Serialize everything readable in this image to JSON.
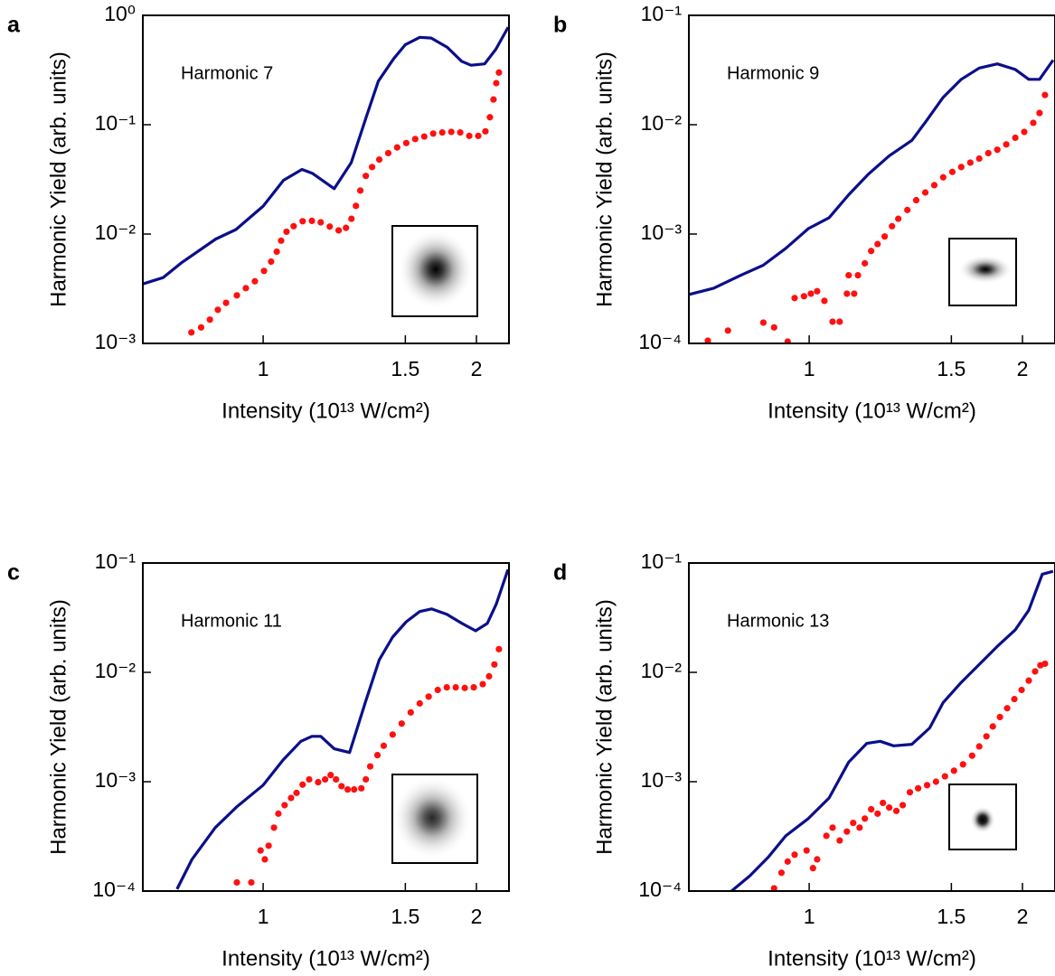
{
  "chart_data": [
    {
      "type": "line",
      "panel_label": "a",
      "annotation": "Harmonic 7",
      "xlabel": "Intensity (10¹³ W/cm²)",
      "ylabel": "Harmonic Yield (arb. units)",
      "xscale": "inverse",
      "yscale": "log",
      "xlim": [
        0.78,
        2.36
      ],
      "ylim": [
        0.001,
        1
      ],
      "xticks": [
        1,
        1.5,
        2
      ],
      "yticks": [
        {
          "value": 0.001,
          "label": "10⁻³"
        },
        {
          "value": 0.01,
          "label": "10⁻²"
        },
        {
          "value": 0.1,
          "label": "10⁻¹"
        },
        {
          "value": 1,
          "label": "10⁰"
        }
      ],
      "series": [
        {
          "mode": "line",
          "color": "#0b0f8a",
          "x": [
            0.78,
            0.81,
            0.84,
            0.9,
            0.94,
            1.0,
            1.05,
            1.1,
            1.13,
            1.2,
            1.26,
            1.32,
            1.37,
            1.44,
            1.5,
            1.58,
            1.65,
            1.76,
            1.87,
            1.95,
            2.08,
            2.2,
            2.35
          ],
          "values": [
            0.0035,
            0.004,
            0.0055,
            0.009,
            0.011,
            0.018,
            0.031,
            0.039,
            0.036,
            0.026,
            0.045,
            0.12,
            0.25,
            0.4,
            0.54,
            0.63,
            0.62,
            0.51,
            0.38,
            0.35,
            0.36,
            0.49,
            0.78
          ]
        },
        {
          "mode": "markers",
          "color": "#ff1010",
          "x": [
            0.856,
            0.873,
            0.889,
            0.904,
            0.92,
            0.942,
            0.961,
            0.981,
            1.002,
            1.019,
            1.033,
            1.044,
            1.058,
            1.077,
            1.102,
            1.129,
            1.156,
            1.185,
            1.215,
            1.241,
            1.261,
            1.278,
            1.295,
            1.317,
            1.343,
            1.374,
            1.415,
            1.458,
            1.505,
            1.554,
            1.607,
            1.663,
            1.724,
            1.789,
            1.859,
            1.935,
            2.017,
            2.088,
            2.135,
            2.174,
            2.205,
            2.236
          ],
          "values": [
            0.00126,
            0.0014,
            0.00165,
            0.00203,
            0.00235,
            0.00275,
            0.0032,
            0.0037,
            0.0046,
            0.0056,
            0.0069,
            0.0087,
            0.0105,
            0.0118,
            0.0131,
            0.0132,
            0.0128,
            0.0117,
            0.0108,
            0.0114,
            0.0138,
            0.0181,
            0.025,
            0.034,
            0.041,
            0.048,
            0.055,
            0.062,
            0.068,
            0.074,
            0.078,
            0.083,
            0.085,
            0.086,
            0.085,
            0.079,
            0.079,
            0.087,
            0.117,
            0.17,
            0.24,
            0.3
          ]
        }
      ]
    },
    {
      "type": "line",
      "panel_label": "b",
      "annotation": "Harmonic 9",
      "xlabel": "Intensity (10¹³ W/cm²)",
      "ylabel": "Harmonic Yield (arb. units)",
      "xscale": "inverse",
      "yscale": "log",
      "xlim": [
        0.78,
        2.36
      ],
      "ylim": [
        0.0001,
        0.1
      ],
      "xticks": [
        1,
        1.5,
        2
      ],
      "yticks": [
        {
          "value": 0.0001,
          "label": "10⁻⁴"
        },
        {
          "value": 0.001,
          "label": "10⁻³"
        },
        {
          "value": 0.01,
          "label": "10⁻²"
        },
        {
          "value": 0.1,
          "label": "10⁻¹"
        }
      ],
      "series": [
        {
          "mode": "line",
          "color": "#0b0f8a",
          "x": [
            0.78,
            0.817,
            0.862,
            0.903,
            0.948,
            0.998,
            1.049,
            1.102,
            1.162,
            1.231,
            1.317,
            1.374,
            1.458,
            1.554,
            1.663,
            1.789,
            1.935,
            2.061,
            2.174,
            2.335
          ],
          "values": [
            0.00028,
            0.00032,
            0.00042,
            0.00052,
            0.00074,
            0.00112,
            0.00141,
            0.00229,
            0.00355,
            0.0052,
            0.0072,
            0.0105,
            0.0178,
            0.026,
            0.033,
            0.036,
            0.032,
            0.026,
            0.026,
            0.039
          ]
        },
        {
          "mode": "markers",
          "color": "#ff1010",
          "x": [
            0.808,
            0.84,
            0.903,
            0.924,
            0.952,
            0.967,
            0.988,
            1.004,
            1.019,
            1.037,
            1.058,
            1.077,
            1.097,
            1.118,
            1.102,
            1.129,
            1.15,
            1.17,
            1.191,
            1.215,
            1.241,
            1.264,
            1.299,
            1.335,
            1.374,
            1.415,
            1.458,
            1.505,
            1.554,
            1.607,
            1.663,
            1.724,
            1.789,
            1.859,
            1.935,
            2.017,
            2.107,
            2.174,
            2.236
          ],
          "values": [
            0.000106,
            0.000131,
            0.000155,
            0.00014,
            0.000104,
            0.00026,
            0.00027,
            0.000285,
            0.0003,
            0.000245,
            0.000158,
            0.000158,
            0.000285,
            0.000285,
            0.00042,
            0.00042,
            0.00054,
            0.0007,
            0.00081,
            0.00095,
            0.00118,
            0.00138,
            0.00166,
            0.00204,
            0.0024,
            0.0028,
            0.0033,
            0.0037,
            0.0041,
            0.0045,
            0.0049,
            0.0055,
            0.0059,
            0.0066,
            0.0076,
            0.0086,
            0.0104,
            0.0128,
            0.0187
          ]
        }
      ]
    },
    {
      "type": "line",
      "panel_label": "c",
      "annotation": "Harmonic 11",
      "xlabel": "Intensity (10¹³ W/cm²)",
      "ylabel": "Harmonic Yield (arb. units)",
      "xscale": "inverse",
      "yscale": "log",
      "xlim": [
        0.78,
        2.36
      ],
      "ylim": [
        0.0001,
        0.1
      ],
      "xticks": [
        1,
        1.5,
        2
      ],
      "yticks": [
        {
          "value": 0.0001,
          "label": "10⁻⁴"
        },
        {
          "value": 0.001,
          "label": "10⁻³"
        },
        {
          "value": 0.01,
          "label": "10⁻²"
        },
        {
          "value": 0.1,
          "label": "10⁻¹"
        }
      ],
      "series": [
        {
          "mode": "line",
          "color": "#0b0f8a",
          "x": [
            0.832,
            0.857,
            0.899,
            0.942,
            1.0,
            1.049,
            1.097,
            1.129,
            1.156,
            1.2,
            1.254,
            1.317,
            1.374,
            1.436,
            1.505,
            1.58,
            1.652,
            1.756,
            1.874,
            1.992,
            2.107,
            2.205,
            2.347
          ],
          "values": [
            0.000104,
            0.000195,
            0.00038,
            0.00059,
            0.00093,
            0.00158,
            0.00234,
            0.0026,
            0.0026,
            0.002,
            0.00185,
            0.0055,
            0.013,
            0.021,
            0.029,
            0.036,
            0.038,
            0.034,
            0.028,
            0.024,
            0.028,
            0.042,
            0.087
          ]
        },
        {
          "mode": "markers",
          "color": "#ff1010",
          "x": [
            0.942,
            0.973,
            0.994,
            1.004,
            1.013,
            1.026,
            1.037,
            1.053,
            1.07,
            1.085,
            1.102,
            1.121,
            1.148,
            1.17,
            1.188,
            1.206,
            1.225,
            1.247,
            1.271,
            1.299,
            1.317,
            1.335,
            1.366,
            1.394,
            1.436,
            1.481,
            1.529,
            1.58,
            1.634,
            1.693,
            1.756,
            1.823,
            1.896,
            1.975,
            2.061,
            2.126,
            2.184,
            2.236
          ],
          "values": [
            0.00012,
            0.00012,
            0.000235,
            0.000195,
            0.00026,
            0.00038,
            0.00051,
            0.00061,
            0.00071,
            0.00079,
            0.00094,
            0.00105,
            0.00099,
            0.00105,
            0.00115,
            0.00105,
            0.00091,
            0.00085,
            0.00085,
            0.00087,
            0.00105,
            0.00138,
            0.00175,
            0.00213,
            0.0027,
            0.0034,
            0.0043,
            0.0052,
            0.006,
            0.0069,
            0.0073,
            0.0073,
            0.0072,
            0.0073,
            0.0078,
            0.0092,
            0.0118,
            0.0163
          ]
        }
      ]
    },
    {
      "type": "line",
      "panel_label": "d",
      "annotation": "Harmonic 13",
      "xlabel": "Intensity (10¹³ W/cm²)",
      "ylabel": "Harmonic Yield (arb. units)",
      "xscale": "inverse",
      "yscale": "log",
      "xlim": [
        0.78,
        2.36
      ],
      "ylim": [
        0.0001,
        0.1
      ],
      "xticks": [
        1,
        1.5,
        2
      ],
      "yticks": [
        {
          "value": 0.0001,
          "label": "10⁻⁴"
        },
        {
          "value": 0.001,
          "label": "10⁻³"
        },
        {
          "value": 0.01,
          "label": "10⁻²"
        },
        {
          "value": 0.1,
          "label": "10⁻¹"
        }
      ],
      "series": [
        {
          "mode": "line",
          "color": "#0b0f8a",
          "x": [
            0.846,
            0.878,
            0.912,
            0.948,
            0.998,
            1.049,
            1.102,
            1.156,
            1.2,
            1.247,
            1.317,
            1.394,
            1.458,
            1.554,
            1.663,
            1.789,
            1.935,
            2.061,
            2.205,
            2.335
          ],
          "values": [
            0.0001,
            0.000138,
            0.000203,
            0.00032,
            0.00046,
            0.00071,
            0.00151,
            0.00224,
            0.00234,
            0.00213,
            0.0022,
            0.0031,
            0.0053,
            0.0081,
            0.0118,
            0.0173,
            0.0245,
            0.037,
            0.079,
            0.084
          ]
        },
        {
          "mode": "markers",
          "color": "#ff1010",
          "x": [
            0.924,
            0.939,
            0.952,
            0.967,
            0.994,
            1.009,
            1.019,
            1.042,
            1.058,
            1.077,
            1.097,
            1.115,
            1.134,
            1.15,
            1.17,
            1.191,
            1.209,
            1.231,
            1.257,
            1.281,
            1.309,
            1.343,
            1.382,
            1.423,
            1.467,
            1.514,
            1.564,
            1.618,
            1.663,
            1.711,
            1.756,
            1.809,
            1.866,
            1.927,
            1.992,
            2.061,
            2.126,
            2.184,
            2.236
          ],
          "values": [
            0.000106,
            0.000147,
            0.000186,
            0.000215,
            0.000235,
            0.000162,
            0.000195,
            0.00032,
            0.00038,
            0.00029,
            0.00035,
            0.00042,
            0.00038,
            0.00046,
            0.00056,
            0.00051,
            0.00064,
            0.00058,
            0.00054,
            0.00061,
            0.0008,
            0.00087,
            0.00093,
            0.001,
            0.00112,
            0.00126,
            0.00144,
            0.00173,
            0.0021,
            0.0026,
            0.0032,
            0.0039,
            0.0047,
            0.0057,
            0.0069,
            0.0084,
            0.0102,
            0.0116,
            0.012
          ]
        }
      ]
    }
  ]
}
